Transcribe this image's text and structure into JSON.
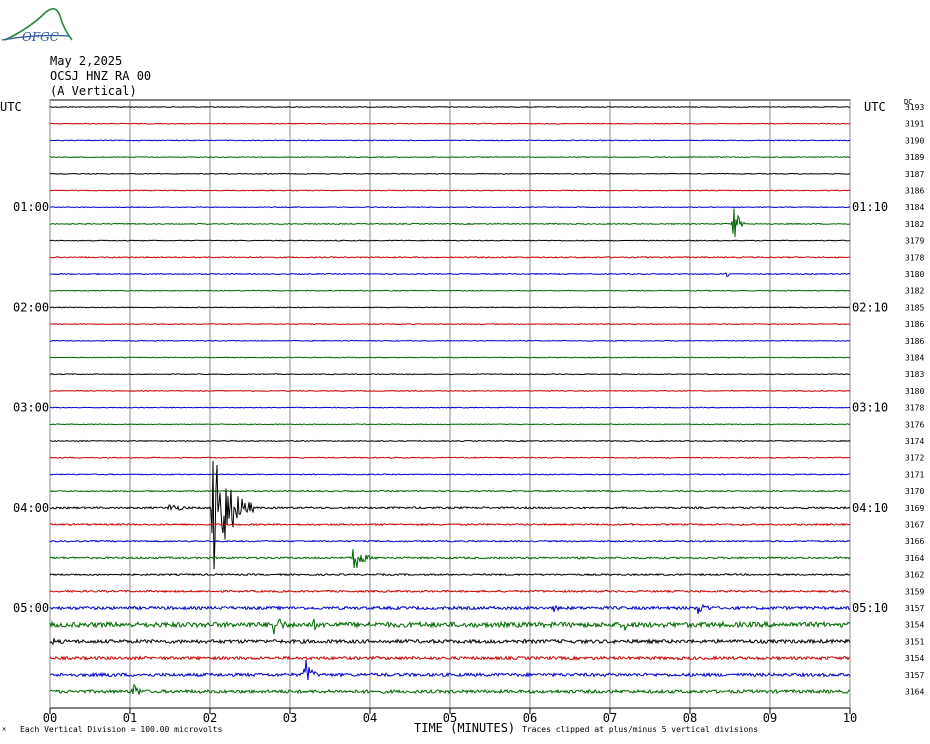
{
  "header": {
    "date": "May 2,2025",
    "station": "OCSJ HNZ RA 00",
    "component": "(A Vertical)",
    "logo_text": "OFGC"
  },
  "labels": {
    "utc_left": "UTC",
    "utc_right": "UTC",
    "dc_header": "DC",
    "x_title": "TIME (MINUTES)",
    "scale_note": "Each Vertical Division =  100.00 microvolts",
    "clip_note": "Traces clipped at plus/minus 5 vertical divisions",
    "corner_mark": "✕"
  },
  "colors": {
    "trace_cycle": [
      "#000000",
      "#cc0000",
      "#0000cc",
      "#006600"
    ],
    "grid": "#888888"
  },
  "chart_data": {
    "type": "line",
    "x_ticks": [
      "00",
      "01",
      "02",
      "03",
      "04",
      "05",
      "06",
      "07",
      "08",
      "09",
      "10"
    ],
    "xlim": [
      0,
      10
    ],
    "left_time_labels": [
      {
        "row": 6,
        "label": "01:00"
      },
      {
        "row": 12,
        "label": "02:00"
      },
      {
        "row": 18,
        "label": "03:00"
      },
      {
        "row": 24,
        "label": "04:00"
      },
      {
        "row": 30,
        "label": "05:00"
      }
    ],
    "right_time_labels": [
      {
        "row": 6,
        "label": "01:10"
      },
      {
        "row": 12,
        "label": "02:10"
      },
      {
        "row": 18,
        "label": "03:10"
      },
      {
        "row": 24,
        "label": "04:10"
      },
      {
        "row": 30,
        "label": "05:10"
      }
    ],
    "dc_values": [
      "3193",
      "3191",
      "3190",
      "3189",
      "3187",
      "3186",
      "3184",
      "3182",
      "3179",
      "3178",
      "3180",
      "3182",
      "3185",
      "3186",
      "3186",
      "3184",
      "3183",
      "3180",
      "3178",
      "3176",
      "3174",
      "3172",
      "3171",
      "3170",
      "3169",
      "3167",
      "3166",
      "3164",
      "3162",
      "3159",
      "3157",
      "3154",
      "3151",
      "3154",
      "3157",
      "3164"
    ],
    "noise": [
      0.4,
      0.4,
      0.4,
      0.4,
      0.4,
      0.4,
      0.4,
      0.5,
      0.4,
      0.6,
      0.5,
      0.4,
      0.4,
      0.4,
      0.4,
      0.4,
      0.4,
      0.4,
      0.4,
      0.4,
      0.5,
      0.5,
      0.5,
      0.6,
      0.9,
      0.8,
      0.7,
      0.9,
      0.8,
      0.9,
      1.5,
      2.5,
      1.8,
      1.5,
      1.6,
      1.6
    ],
    "events": [
      {
        "row": 7,
        "minute": 8.55,
        "amp": 22,
        "dur": 0.15
      },
      {
        "row": 10,
        "minute": 8.47,
        "amp": 6,
        "dur": 0.03
      },
      {
        "row": 24,
        "minute": 2.05,
        "amp": 82,
        "dur": 0.5
      },
      {
        "row": 24,
        "minute": 1.5,
        "amp": 5,
        "dur": 0.5
      },
      {
        "row": 27,
        "minute": 3.8,
        "amp": 15,
        "dur": 0.3
      },
      {
        "row": 30,
        "minute": 8.1,
        "amp": 7,
        "dur": 0.4
      },
      {
        "row": 30,
        "minute": 6.3,
        "amp": 4,
        "dur": 0.3
      },
      {
        "row": 31,
        "minute": 2.8,
        "amp": 14,
        "dur": 0.3
      },
      {
        "row": 31,
        "minute": 3.3,
        "amp": 6,
        "dur": 0.3
      },
      {
        "row": 31,
        "minute": 7.2,
        "amp": 10,
        "dur": 0.1
      },
      {
        "row": 32,
        "minute": 0.05,
        "amp": 5,
        "dur": 0.05
      },
      {
        "row": 34,
        "minute": 3.2,
        "amp": 18,
        "dur": 0.2
      },
      {
        "row": 34,
        "minute": 0.75,
        "amp": 6,
        "dur": 0.05
      },
      {
        "row": 35,
        "minute": 1.05,
        "amp": 10,
        "dur": 0.2
      }
    ]
  }
}
